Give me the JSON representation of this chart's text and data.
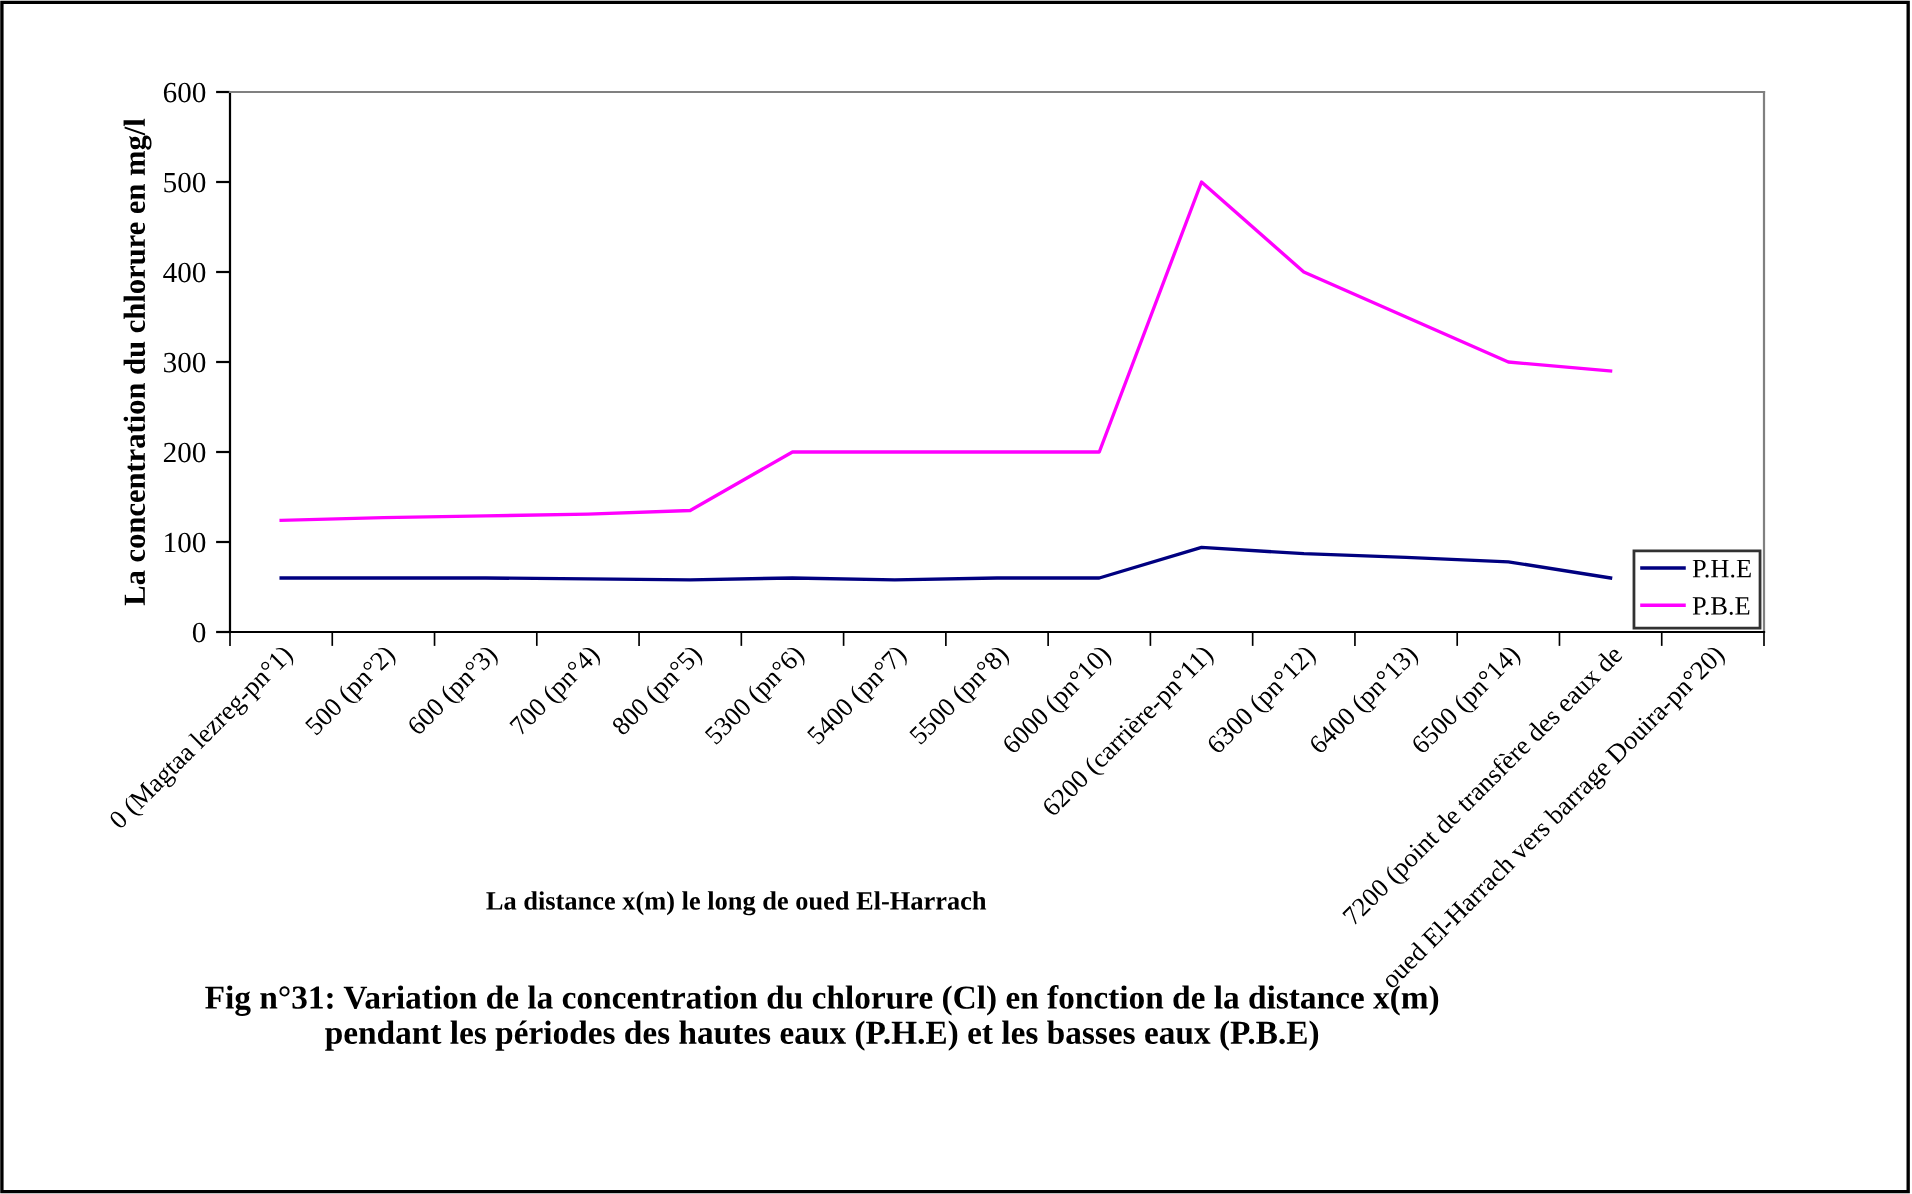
{
  "chart_data": {
    "type": "line",
    "title": "Fig n°31: Variation de la concentration du chlorure (Cl) en fonction de la distance x(m)\npendant les périodes des hautes eaux (P.H.E) et les basses eaux (P.B.E)",
    "xlabel": "La distance x(m) le long de oued El-Harrach",
    "ylabel": "La concentration du chlorure en mg/l",
    "categories": [
      "0 (Magtaa lezreg-pn°1)",
      "500 (pn°2)",
      "600 (pn°3)",
      "700 (pn°4)",
      "800 (pn°5)",
      "5300 (pn°6)",
      "5400 (pn°7)",
      "5500 (pn°8)",
      "6000 (pn°10)",
      "6200 (carrière-pn°11)",
      "6300 (pn°12)",
      "6400 (pn°13)",
      "6500 (pn°14)",
      "7200 (point de transfère des eaux de",
      "oued El-Harrach vers barrage Douira-pn°20)"
    ],
    "series": [
      {
        "name": "P.H.E",
        "color": "#000080",
        "values": [
          60,
          60,
          60,
          59,
          58,
          60,
          58,
          60,
          60,
          94,
          87,
          83,
          78,
          60,
          null
        ]
      },
      {
        "name": "P.B.E",
        "color": "#ff00ff",
        "values": [
          124,
          127,
          129,
          131,
          135,
          200,
          200,
          200,
          200,
          500,
          400,
          350,
          300,
          290,
          null
        ]
      }
    ],
    "ylim": [
      0,
      600
    ],
    "yticks": [
      0,
      100,
      200,
      300,
      400,
      500,
      600
    ],
    "grid": false,
    "legend": "bottom right",
    "marker": "none",
    "line_style": "solid"
  }
}
